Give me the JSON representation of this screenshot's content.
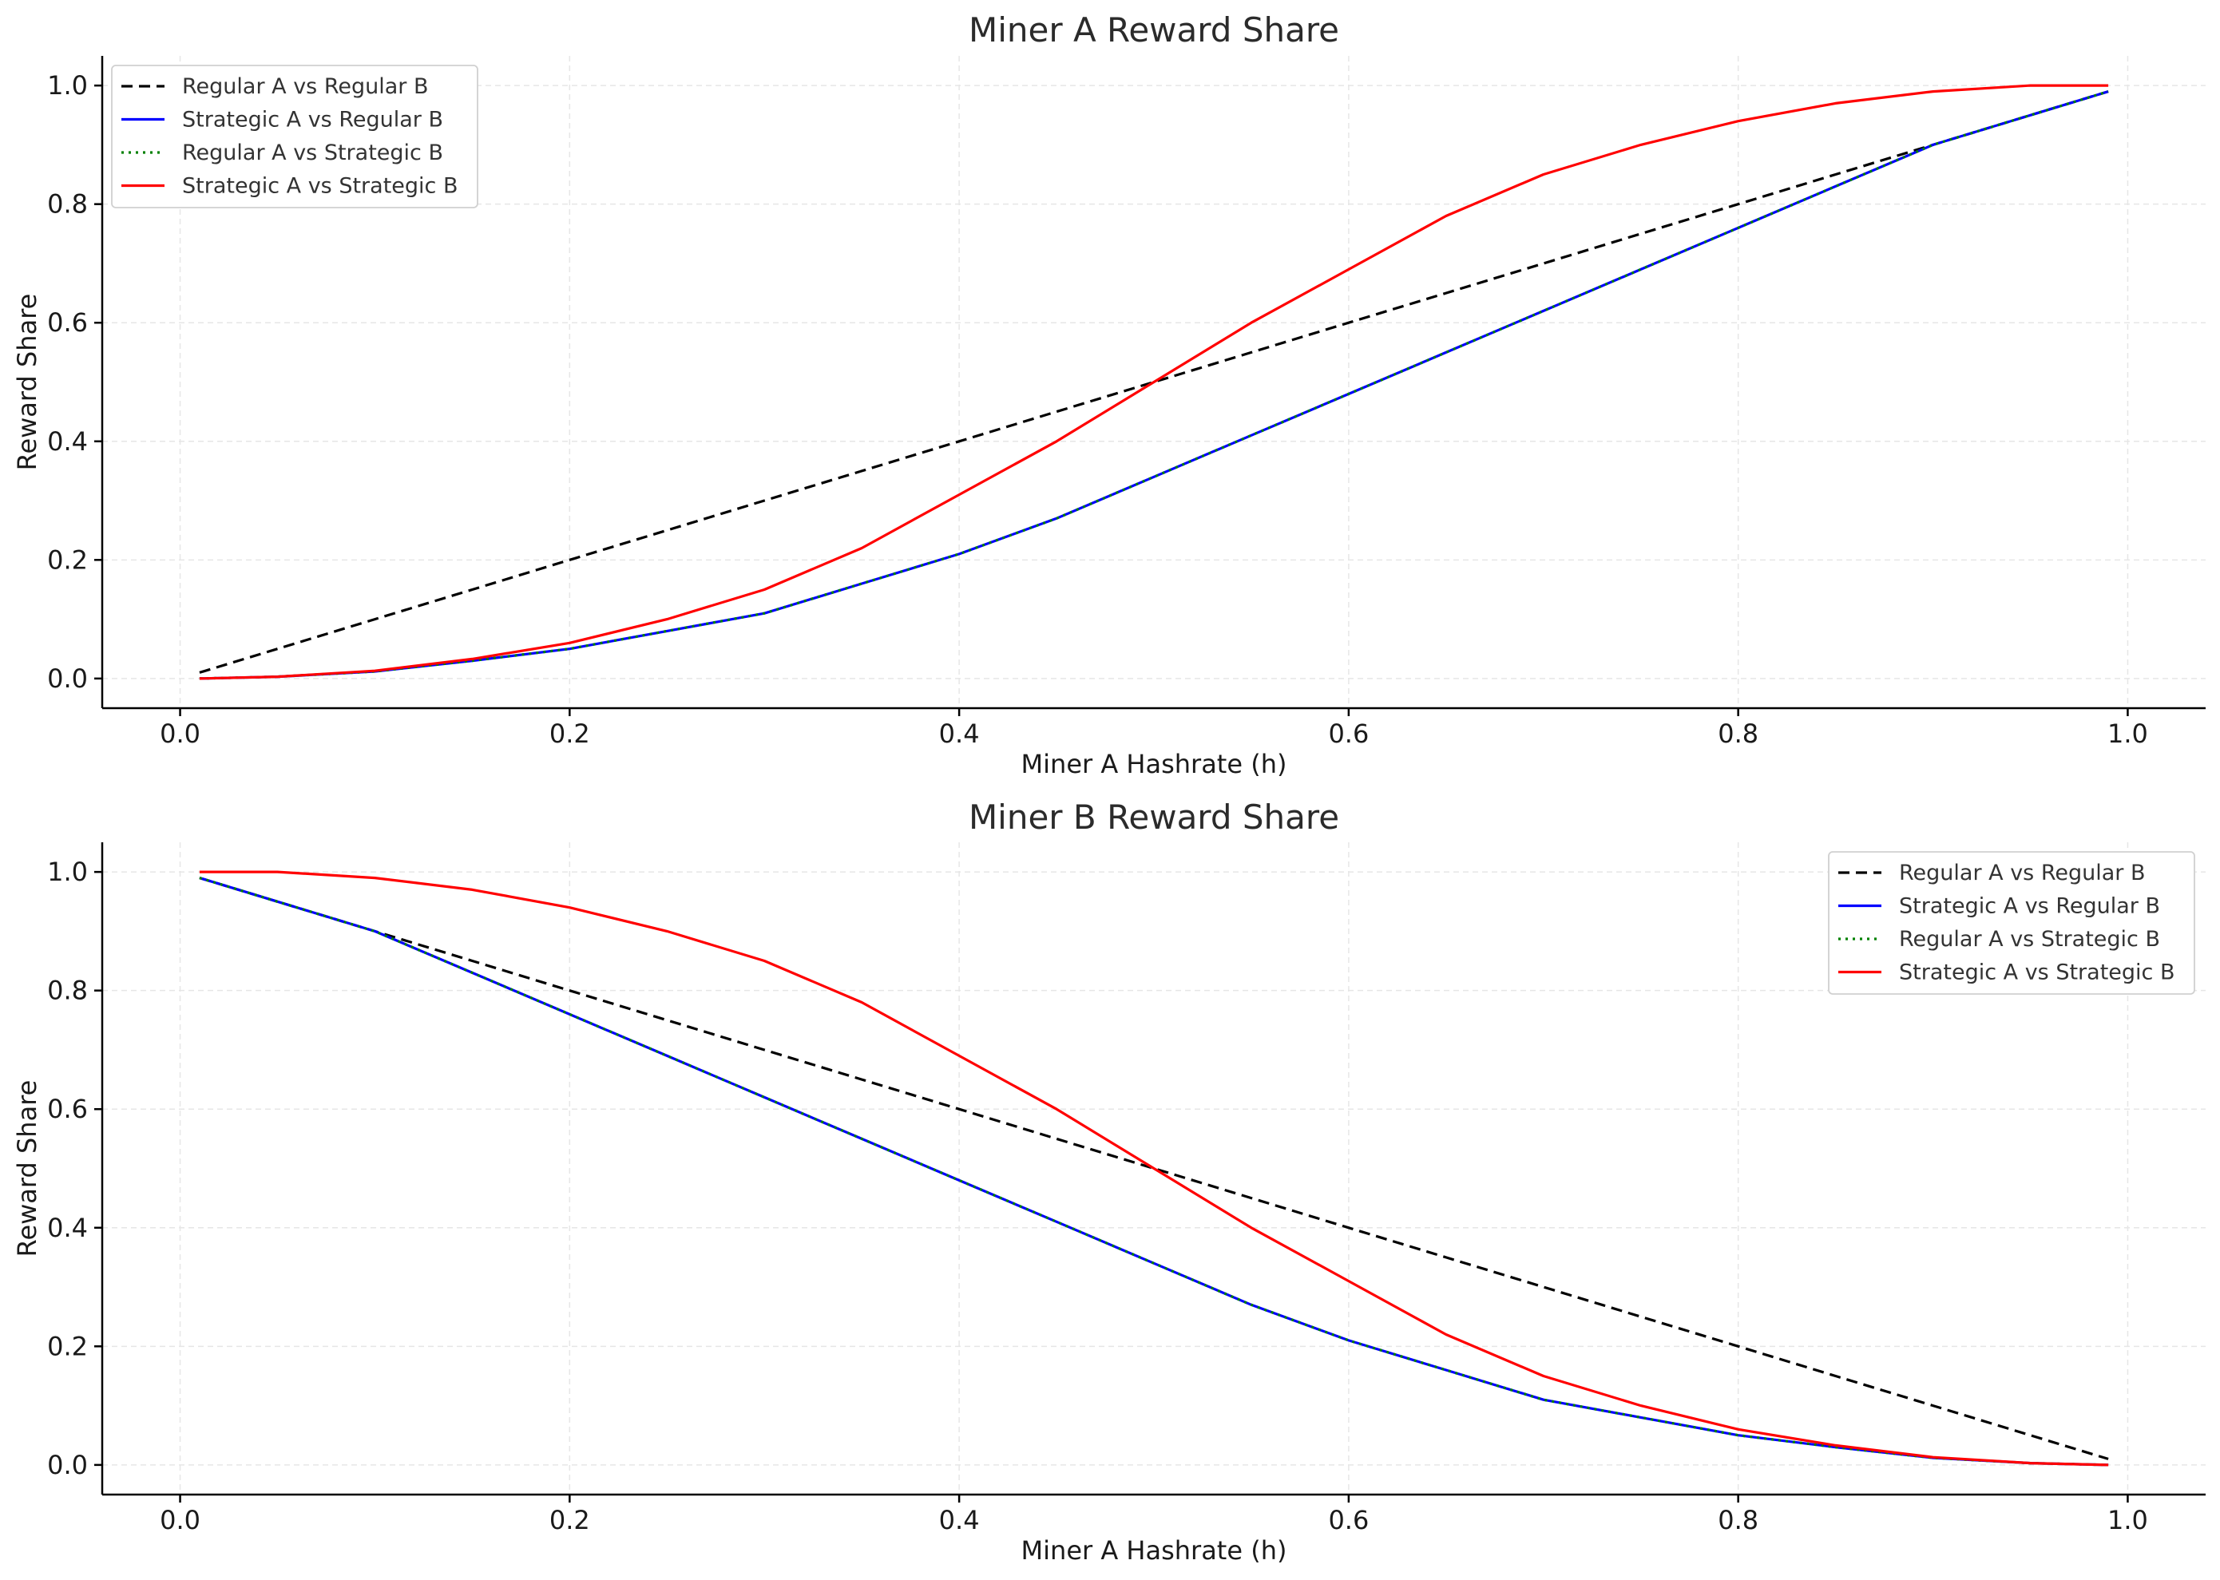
{
  "chart_data": [
    {
      "type": "line",
      "title": "Miner A Reward Share",
      "xlabel": "Miner A Hashrate (h)",
      "ylabel": "Reward Share",
      "xlim": [
        -0.04,
        1.04
      ],
      "ylim": [
        -0.05,
        1.05
      ],
      "xticks": [
        "0.0",
        "0.2",
        "0.4",
        "0.6",
        "0.8",
        "1.0"
      ],
      "yticks": [
        "0.0",
        "0.2",
        "0.4",
        "0.6",
        "0.8",
        "1.0"
      ],
      "grid": true,
      "legend_position": "upper-left",
      "x": [
        0.01,
        0.05,
        0.1,
        0.15,
        0.2,
        0.25,
        0.3,
        0.35,
        0.4,
        0.45,
        0.5,
        0.55,
        0.6,
        0.65,
        0.7,
        0.75,
        0.8,
        0.85,
        0.9,
        0.95,
        0.99
      ],
      "series": [
        {
          "name": "Regular A vs Regular B",
          "color": "#000000",
          "style": "dashed",
          "values": [
            0.01,
            0.05,
            0.1,
            0.15,
            0.2,
            0.25,
            0.3,
            0.35,
            0.4,
            0.45,
            0.5,
            0.55,
            0.6,
            0.65,
            0.7,
            0.75,
            0.8,
            0.85,
            0.9,
            0.95,
            0.99
          ]
        },
        {
          "name": "Strategic A vs Regular B",
          "color": "#0000ff",
          "style": "solid",
          "values": [
            0.0,
            0.003,
            0.012,
            0.03,
            0.05,
            0.08,
            0.11,
            0.16,
            0.21,
            0.27,
            0.34,
            0.41,
            0.48,
            0.55,
            0.62,
            0.69,
            0.76,
            0.83,
            0.9,
            0.95,
            0.99
          ]
        },
        {
          "name": "Regular A vs Strategic B",
          "color": "#008000",
          "style": "dotted",
          "values": [
            0.0,
            0.003,
            0.012,
            0.03,
            0.05,
            0.08,
            0.11,
            0.16,
            0.21,
            0.27,
            0.34,
            0.41,
            0.48,
            0.55,
            0.62,
            0.69,
            0.76,
            0.83,
            0.9,
            0.95,
            0.99
          ]
        },
        {
          "name": "Strategic A vs Strategic B",
          "color": "#ff0000",
          "style": "solid",
          "values": [
            0.0,
            0.003,
            0.013,
            0.033,
            0.06,
            0.1,
            0.15,
            0.22,
            0.31,
            0.4,
            0.5,
            0.6,
            0.69,
            0.78,
            0.85,
            0.9,
            0.94,
            0.97,
            0.99,
            1.0,
            1.0
          ]
        }
      ]
    },
    {
      "type": "line",
      "title": "Miner B Reward Share",
      "xlabel": "Miner A Hashrate (h)",
      "ylabel": "Reward Share",
      "xlim": [
        -0.04,
        1.04
      ],
      "ylim": [
        -0.05,
        1.05
      ],
      "xticks": [
        "0.0",
        "0.2",
        "0.4",
        "0.6",
        "0.8",
        "1.0"
      ],
      "yticks": [
        "0.0",
        "0.2",
        "0.4",
        "0.6",
        "0.8",
        "1.0"
      ],
      "grid": true,
      "legend_position": "upper-right",
      "x": [
        0.01,
        0.05,
        0.1,
        0.15,
        0.2,
        0.25,
        0.3,
        0.35,
        0.4,
        0.45,
        0.5,
        0.55,
        0.6,
        0.65,
        0.7,
        0.75,
        0.8,
        0.85,
        0.9,
        0.95,
        0.99
      ],
      "series": [
        {
          "name": "Regular A vs Regular B",
          "color": "#000000",
          "style": "dashed",
          "values": [
            0.99,
            0.95,
            0.9,
            0.85,
            0.8,
            0.75,
            0.7,
            0.65,
            0.6,
            0.55,
            0.5,
            0.45,
            0.4,
            0.35,
            0.3,
            0.25,
            0.2,
            0.15,
            0.1,
            0.05,
            0.01
          ]
        },
        {
          "name": "Strategic A vs Regular B",
          "color": "#0000ff",
          "style": "solid",
          "values": [
            0.99,
            0.95,
            0.9,
            0.83,
            0.76,
            0.69,
            0.62,
            0.55,
            0.48,
            0.41,
            0.34,
            0.27,
            0.21,
            0.16,
            0.11,
            0.08,
            0.05,
            0.03,
            0.012,
            0.003,
            0.0
          ]
        },
        {
          "name": "Regular A vs Strategic B",
          "color": "#008000",
          "style": "dotted",
          "values": [
            0.99,
            0.95,
            0.9,
            0.83,
            0.76,
            0.69,
            0.62,
            0.55,
            0.48,
            0.41,
            0.34,
            0.27,
            0.21,
            0.16,
            0.11,
            0.08,
            0.05,
            0.03,
            0.012,
            0.003,
            0.0
          ]
        },
        {
          "name": "Strategic A vs Strategic B",
          "color": "#ff0000",
          "style": "solid",
          "values": [
            1.0,
            1.0,
            0.99,
            0.97,
            0.94,
            0.9,
            0.85,
            0.78,
            0.69,
            0.6,
            0.5,
            0.4,
            0.31,
            0.22,
            0.15,
            0.1,
            0.06,
            0.033,
            0.013,
            0.003,
            0.0
          ]
        }
      ]
    }
  ]
}
